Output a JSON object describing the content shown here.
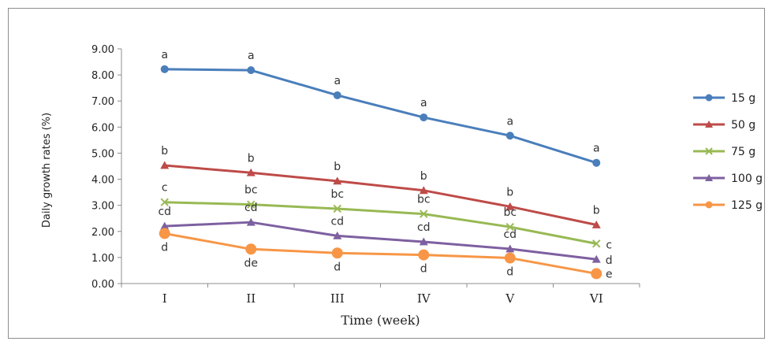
{
  "chart_data": {
    "type": "line",
    "title": "",
    "xlabel": "Time (week)",
    "ylabel": "Daily growth rates (%)",
    "categories": [
      "I",
      "II",
      "III",
      "IV",
      "V",
      "VI"
    ],
    "y_ticks": [
      "0.00",
      "1.00",
      "2.00",
      "3.00",
      "4.00",
      "5.00",
      "6.00",
      "7.00",
      "8.00",
      "9.00"
    ],
    "ylim": [
      0,
      9
    ],
    "grid": false,
    "legend_position": "right",
    "series": [
      {
        "name": "15 g",
        "color": "#4a7ebb",
        "marker": "circle",
        "values": [
          8.22,
          8.18,
          7.22,
          6.37,
          5.67,
          4.63
        ],
        "labels": [
          "a",
          "a",
          "a",
          "a",
          "a",
          "a"
        ]
      },
      {
        "name": "50 g",
        "color": "#be4b48",
        "marker": "triangle",
        "values": [
          4.53,
          4.25,
          3.93,
          3.57,
          2.95,
          2.25
        ],
        "labels": [
          "b",
          "b",
          "b",
          "b",
          "b",
          "b"
        ]
      },
      {
        "name": "75 g",
        "color": "#98b954",
        "marker": "x",
        "values": [
          3.12,
          3.03,
          2.87,
          2.67,
          2.17,
          1.53
        ],
        "labels": [
          "c",
          "bc",
          "bc",
          "bc",
          "bc",
          "c"
        ]
      },
      {
        "name": "100 g",
        "color": "#7d60a0",
        "marker": "triangle",
        "values": [
          2.2,
          2.35,
          1.83,
          1.6,
          1.33,
          0.93
        ],
        "labels": [
          "cd",
          "cd",
          "cd",
          "cd",
          "cd",
          "d"
        ]
      },
      {
        "name": "125 g",
        "color": "#f79646",
        "marker": "circle",
        "values": [
          1.92,
          1.32,
          1.17,
          1.1,
          0.98,
          0.38
        ],
        "labels": [
          "d",
          "de",
          "d",
          "d",
          "d",
          "e"
        ]
      }
    ]
  }
}
